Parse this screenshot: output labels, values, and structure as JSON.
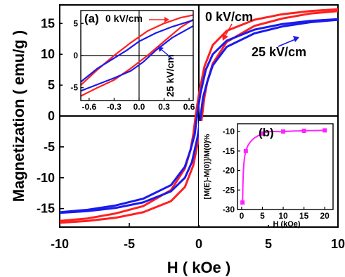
{
  "chart_data": [
    {
      "id": "main",
      "type": "line",
      "xlabel": "H ( kOe )",
      "ylabel": "Magnetization ( emu/g )",
      "xlim": [
        -10,
        10
      ],
      "ylim": [
        -18,
        18
      ],
      "xticks": [
        "-10",
        "-5",
        "0",
        "5",
        "10"
      ],
      "yticks": [
        "-15",
        "-10",
        "-5",
        "0",
        "5",
        "10",
        "15"
      ],
      "grid": false,
      "series": [
        {
          "name": "0 kV/cm",
          "color": "#ff2020",
          "loop": {
            "upper": [
              [
                -10,
                -17.0
              ],
              [
                -8,
                -16.6
              ],
              [
                -6,
                -15.8
              ],
              [
                -4,
                -14.6
              ],
              [
                -2,
                -12.0
              ],
              [
                -1,
                -8.5
              ],
              [
                -0.6,
                -5.5
              ],
              [
                -0.4,
                -3.0
              ],
              [
                -0.2,
                0.5
              ],
              [
                0,
                3.5
              ],
              [
                0.4,
                8.0
              ],
              [
                1,
                11.5
              ],
              [
                2,
                13.8
              ],
              [
                4,
                15.6
              ],
              [
                6,
                16.5
              ],
              [
                8,
                17.0
              ],
              [
                10,
                17.3
              ]
            ],
            "lower": [
              [
                -10,
                -17.3
              ],
              [
                -8,
                -17.0
              ],
              [
                -6,
                -16.5
              ],
              [
                -4,
                -15.6
              ],
              [
                -2,
                -13.8
              ],
              [
                -1,
                -11.5
              ],
              [
                -0.4,
                -8.0
              ],
              [
                0,
                -3.5
              ],
              [
                0.2,
                -0.5
              ],
              [
                0.4,
                3.0
              ],
              [
                0.6,
                5.5
              ],
              [
                1,
                8.5
              ],
              [
                2,
                12.0
              ],
              [
                4,
                14.6
              ],
              [
                6,
                15.8
              ],
              [
                8,
                16.6
              ],
              [
                10,
                17.0
              ]
            ]
          }
        },
        {
          "name": "25 kV/cm",
          "color": "#1a1aee",
          "loop": {
            "upper": [
              [
                -10,
                -15.6
              ],
              [
                -8,
                -15.2
              ],
              [
                -6,
                -14.5
              ],
              [
                -4,
                -13.4
              ],
              [
                -2,
                -11.2
              ],
              [
                -1,
                -8.2
              ],
              [
                -0.6,
                -5.5
              ],
              [
                -0.3,
                -3.0
              ],
              [
                -0.1,
                0.5
              ],
              [
                0.1,
                3.5
              ],
              [
                0.5,
                7.5
              ],
              [
                1,
                10.0
              ],
              [
                2,
                12.2
              ],
              [
                4,
                14.0
              ],
              [
                6,
                14.9
              ],
              [
                8,
                15.4
              ],
              [
                10,
                15.7
              ]
            ],
            "lower": [
              [
                -10,
                -15.7
              ],
              [
                -8,
                -15.4
              ],
              [
                -6,
                -14.9
              ],
              [
                -4,
                -14.0
              ],
              [
                -2,
                -12.2
              ],
              [
                -1,
                -10.0
              ],
              [
                -0.5,
                -7.5
              ],
              [
                -0.1,
                -3.5
              ],
              [
                0.1,
                -0.5
              ],
              [
                0.3,
                3.0
              ],
              [
                0.6,
                5.5
              ],
              [
                1,
                8.2
              ],
              [
                2,
                11.2
              ],
              [
                4,
                13.4
              ],
              [
                6,
                14.5
              ],
              [
                8,
                15.2
              ],
              [
                10,
                15.6
              ]
            ]
          }
        }
      ],
      "annotations": [
        {
          "text": "0 kV/cm",
          "color": "#ff2020"
        },
        {
          "text": "25 kV/cm",
          "color": "#1a1aee"
        }
      ]
    },
    {
      "id": "inset_a",
      "type": "line",
      "label": "(a)",
      "xlim": [
        -0.7,
        0.65
      ],
      "ylim": [
        -7,
        7
      ],
      "xticks": [
        "-0.6",
        "-0.3",
        "0.0",
        "0.3",
        "0.6"
      ],
      "yticks": [
        "5",
        "0",
        "-5"
      ],
      "series": [
        {
          "name": "0 kV/cm",
          "color": "#ff2020",
          "loop": {
            "upper": [
              [
                -0.7,
                -4.6
              ],
              [
                -0.5,
                -2.2
              ],
              [
                -0.3,
                0.0
              ],
              [
                -0.1,
                2.0
              ],
              [
                0.1,
                3.8
              ],
              [
                0.3,
                5.0
              ],
              [
                0.5,
                5.9
              ],
              [
                0.65,
                6.3
              ]
            ],
            "lower": [
              [
                -0.7,
                -6.3
              ],
              [
                -0.5,
                -5.0
              ],
              [
                -0.3,
                -3.8
              ],
              [
                -0.1,
                -2.0
              ],
              [
                0.1,
                0.0
              ],
              [
                0.3,
                2.2
              ],
              [
                0.5,
                4.4
              ],
              [
                0.65,
                5.6
              ]
            ]
          }
        },
        {
          "name": "25 kV/cm",
          "color": "#1a1aee",
          "loop": {
            "upper": [
              [
                -0.7,
                -4.1
              ],
              [
                -0.5,
                -2.0
              ],
              [
                -0.3,
                -0.4
              ],
              [
                -0.15,
                0.8
              ],
              [
                0.0,
                2.2
              ],
              [
                0.2,
                3.5
              ],
              [
                0.4,
                4.5
              ],
              [
                0.65,
                5.5
              ]
            ],
            "lower": [
              [
                -0.7,
                -5.5
              ],
              [
                -0.5,
                -4.5
              ],
              [
                -0.3,
                -3.5
              ],
              [
                -0.1,
                -2.4
              ],
              [
                0.05,
                -1.0
              ],
              [
                0.2,
                0.8
              ],
              [
                0.4,
                2.8
              ],
              [
                0.65,
                4.6
              ]
            ]
          }
        }
      ],
      "annotations": [
        {
          "text": "0 kV/cm",
          "color": "#ff2020"
        },
        {
          "text": "25 kV/cm",
          "color": "#1a1aee"
        }
      ]
    },
    {
      "id": "inset_b",
      "type": "scatter",
      "label": "(b)",
      "xlabel": "H (kOe)",
      "ylabel": "[M(E)-M(0)]/M(0)%",
      "xlim": [
        -1,
        22
      ],
      "ylim": [
        -30,
        -8
      ],
      "xticks": [
        "0",
        "5",
        "10",
        "15",
        "20"
      ],
      "yticks": [
        "-10",
        "-15",
        "-20",
        "-25",
        "-30"
      ],
      "color": "#ff22ff",
      "x": [
        0.2,
        1,
        5,
        10,
        15,
        20
      ],
      "y": [
        -28.2,
        -15.0,
        -10.5,
        -10.0,
        -9.8,
        -9.7
      ]
    }
  ]
}
